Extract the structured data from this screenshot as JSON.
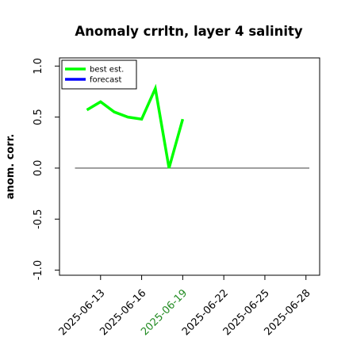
{
  "chart_data": {
    "type": "line",
    "title": "Anomaly crrltn, layer 4 salinity",
    "xlabel": "",
    "ylabel": "anom. corr.",
    "x_dates": [
      "2025-06-12",
      "2025-06-13",
      "2025-06-14",
      "2025-06-15",
      "2025-06-16",
      "2025-06-17",
      "2025-06-18",
      "2025-06-19"
    ],
    "series": [
      {
        "name": "best est.",
        "color": "#00ff00",
        "values": [
          0.57,
          0.65,
          0.55,
          0.5,
          0.48,
          0.78,
          0.0,
          0.48
        ]
      },
      {
        "name": "forecast",
        "color": "#0000ff",
        "values": []
      }
    ],
    "reference_line": {
      "y": 0.0,
      "color": "#555555"
    },
    "ylim": [
      -1.05,
      1.08
    ],
    "xlim": [
      "2025-06-10",
      "2025-06-29"
    ],
    "yticks": [
      {
        "value": -1.0,
        "label": "-1.0"
      },
      {
        "value": -0.5,
        "label": "-0.5"
      },
      {
        "value": 0.0,
        "label": "0.0"
      },
      {
        "value": 0.5,
        "label": "0.5"
      },
      {
        "value": 1.0,
        "label": "1.0"
      }
    ],
    "xticks": [
      {
        "date": "2025-06-13",
        "label": "2025-06-13",
        "color": "#000000"
      },
      {
        "date": "2025-06-16",
        "label": "2025-06-16",
        "color": "#000000"
      },
      {
        "date": "2025-06-19",
        "label": "2025-06-19",
        "color": "#228b22"
      },
      {
        "date": "2025-06-22",
        "label": "2025-06-22",
        "color": "#000000"
      },
      {
        "date": "2025-06-25",
        "label": "2025-06-25",
        "color": "#000000"
      },
      {
        "date": "2025-06-28",
        "label": "2025-06-28",
        "color": "#000000"
      }
    ],
    "legend_position": "top-left",
    "grid": false
  }
}
